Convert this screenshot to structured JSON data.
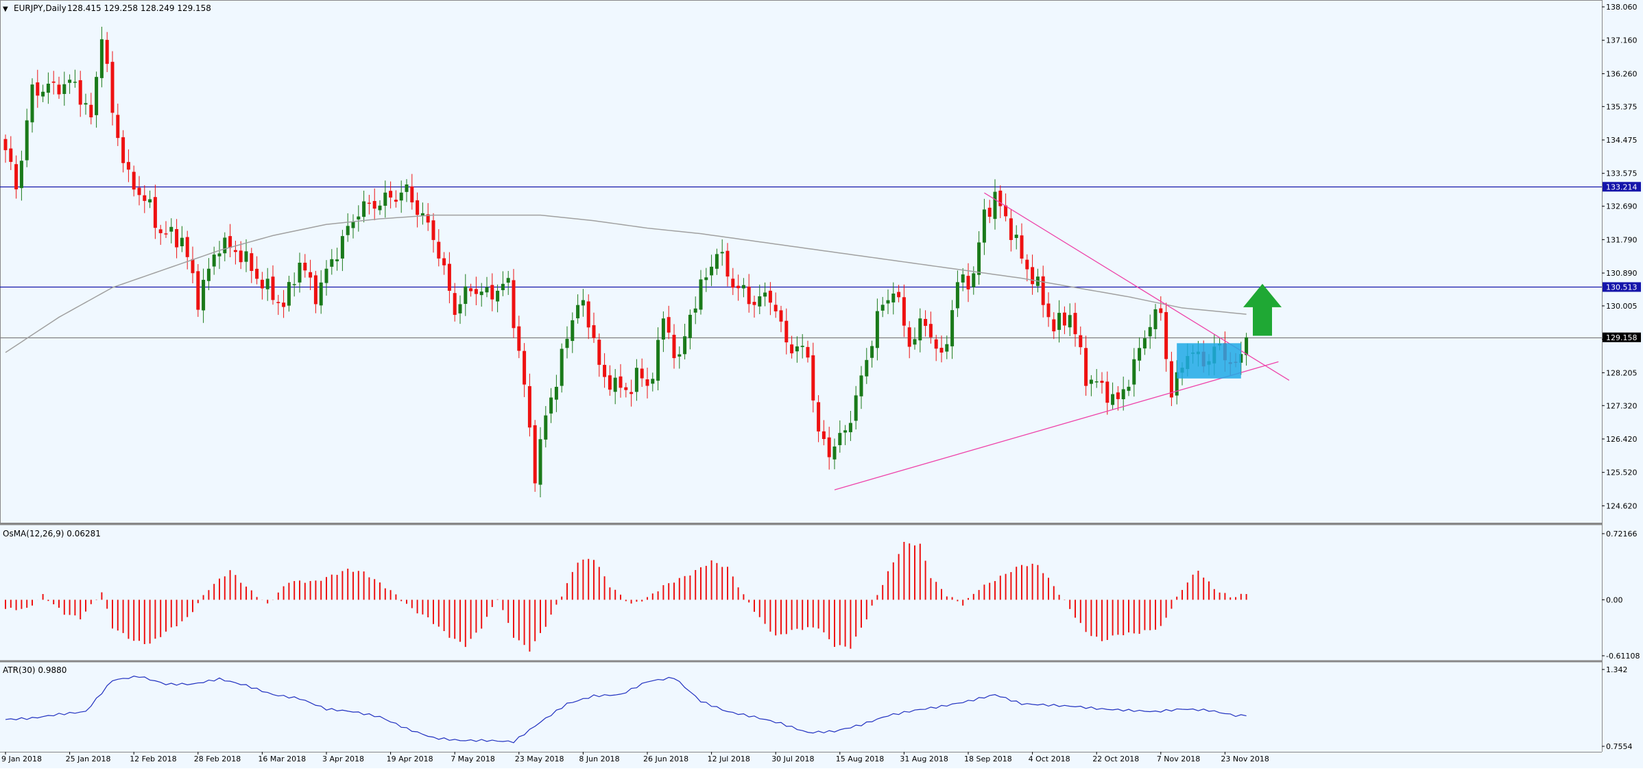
{
  "header": {
    "collapse_glyph": "▼",
    "symbol": "EURJPY,Daily",
    "ohlc": "128.415 129.258 128.249 129.158"
  },
  "colors": {
    "background": "#f0f8ff",
    "bull": "#1a7a1a",
    "bear": "#ee1111",
    "ma": "#a0a0a0",
    "resistance": "#1515aa",
    "current_line": "#808080",
    "trendline": "#ee44aa",
    "zone": "#1ea9e6",
    "arrow": "#1fa834",
    "osma": "#ee1111",
    "atr": "#2030c0",
    "grid": "#888888"
  },
  "chart_data": [
    {
      "type": "candlestick",
      "title": "EURJPY,Daily",
      "ylim": [
        124.35,
        138.06
      ],
      "yticks": [
        "138.060",
        "137.160",
        "136.260",
        "135.375",
        "134.475",
        "133.575",
        "132.690",
        "131.790",
        "130.890",
        "130.005",
        "129.105",
        "128.205",
        "127.320",
        "126.420",
        "125.520",
        "124.620"
      ],
      "price_labels": [
        {
          "value": 133.214,
          "label": "133.214",
          "color": "#1515aa"
        },
        {
          "value": 130.513,
          "label": "130.513",
          "color": "#1515aa"
        },
        {
          "value": 129.158,
          "label": "129.158",
          "color": "#000000"
        }
      ],
      "x_labels": [
        {
          "index": 0,
          "label": "9 Jan 2018"
        },
        {
          "index": 12,
          "label": "25 Jan 2018"
        },
        {
          "index": 24,
          "label": "12 Feb 2018"
        },
        {
          "index": 36,
          "label": "28 Feb 2018"
        },
        {
          "index": 48,
          "label": "16 Mar 2018"
        },
        {
          "index": 60,
          "label": "3 Apr 2018"
        },
        {
          "index": 72,
          "label": "19 Apr 2018"
        },
        {
          "index": 84,
          "label": "7 May 2018"
        },
        {
          "index": 96,
          "label": "23 May 2018"
        },
        {
          "index": 108,
          "label": "8 Jun 2018"
        },
        {
          "index": 120,
          "label": "26 Jun 2018"
        },
        {
          "index": 132,
          "label": "12 Jul 2018"
        },
        {
          "index": 144,
          "label": "30 Jul 2018"
        },
        {
          "index": 156,
          "label": "15 Aug 2018"
        },
        {
          "index": 168,
          "label": "31 Aug 2018"
        },
        {
          "index": 180,
          "label": "18 Sep 2018"
        },
        {
          "index": 192,
          "label": "4 Oct 2018"
        },
        {
          "index": 204,
          "label": "22 Oct 2018"
        },
        {
          "index": 216,
          "label": "7 Nov 2018"
        },
        {
          "index": 228,
          "label": "23 Nov 2018"
        }
      ],
      "anchors": [
        [
          0,
          134.2
        ],
        [
          2,
          133.2
        ],
        [
          5,
          135.8
        ],
        [
          9,
          135.9
        ],
        [
          13,
          136.0
        ],
        [
          16,
          135.0
        ],
        [
          18,
          137.4
        ],
        [
          20,
          135.2
        ],
        [
          23,
          133.4
        ],
        [
          26,
          132.9
        ],
        [
          29,
          132.0
        ],
        [
          33,
          131.8
        ],
        [
          36,
          130.2
        ],
        [
          40,
          131.7
        ],
        [
          44,
          131.4
        ],
        [
          48,
          130.6
        ],
        [
          52,
          130.0
        ],
        [
          55,
          131.2
        ],
        [
          58,
          130.3
        ],
        [
          62,
          131.5
        ],
        [
          66,
          132.6
        ],
        [
          70,
          132.8
        ],
        [
          75,
          133.1
        ],
        [
          80,
          131.9
        ],
        [
          84,
          129.9
        ],
        [
          87,
          130.5
        ],
        [
          90,
          130.3
        ],
        [
          94,
          130.6
        ],
        [
          97,
          127.8
        ],
        [
          99,
          125.5
        ],
        [
          101,
          127.0
        ],
        [
          104,
          128.6
        ],
        [
          107,
          130.2
        ],
        [
          110,
          129.2
        ],
        [
          112,
          127.8
        ],
        [
          114,
          128.1
        ],
        [
          116,
          127.5
        ],
        [
          118,
          128.3
        ],
        [
          120,
          127.7
        ],
        [
          123,
          129.6
        ],
        [
          126,
          128.5
        ],
        [
          128,
          129.8
        ],
        [
          131,
          130.8
        ],
        [
          133,
          131.5
        ],
        [
          136,
          130.6
        ],
        [
          140,
          130.1
        ],
        [
          143,
          130.3
        ],
        [
          146,
          129.0
        ],
        [
          150,
          128.7
        ],
        [
          152,
          126.5
        ],
        [
          154,
          126.1
        ],
        [
          157,
          126.6
        ],
        [
          160,
          128.0
        ],
        [
          163,
          129.7
        ],
        [
          166,
          130.5
        ],
        [
          169,
          129.0
        ],
        [
          172,
          129.6
        ],
        [
          175,
          128.5
        ],
        [
          178,
          130.6
        ],
        [
          181,
          130.8
        ],
        [
          183,
          132.5
        ],
        [
          185,
          132.9
        ],
        [
          187,
          132.4
        ],
        [
          190,
          131.3
        ],
        [
          193,
          130.5
        ],
        [
          196,
          129.4
        ],
        [
          199,
          129.8
        ],
        [
          202,
          128.1
        ],
        [
          205,
          127.8
        ],
        [
          208,
          127.4
        ],
        [
          211,
          128.4
        ],
        [
          214,
          129.6
        ],
        [
          216,
          129.8
        ],
        [
          218,
          127.6
        ],
        [
          221,
          128.8
        ],
        [
          224,
          128.5
        ],
        [
          227,
          128.9
        ],
        [
          230,
          128.3
        ],
        [
          232,
          129.16
        ]
      ],
      "ma_anchors": [
        [
          0,
          128.75
        ],
        [
          10,
          129.7
        ],
        [
          20,
          130.5
        ],
        [
          30,
          131.0
        ],
        [
          40,
          131.5
        ],
        [
          50,
          131.9
        ],
        [
          60,
          132.2
        ],
        [
          70,
          132.35
        ],
        [
          80,
          132.45
        ],
        [
          90,
          132.45
        ],
        [
          100,
          132.45
        ],
        [
          110,
          132.3
        ],
        [
          120,
          132.1
        ],
        [
          130,
          131.95
        ],
        [
          140,
          131.75
        ],
        [
          150,
          131.55
        ],
        [
          160,
          131.35
        ],
        [
          170,
          131.15
        ],
        [
          180,
          130.95
        ],
        [
          190,
          130.75
        ],
        [
          200,
          130.5
        ],
        [
          210,
          130.25
        ],
        [
          220,
          129.95
        ],
        [
          232,
          129.78
        ]
      ],
      "trendlines": [
        {
          "from": [
            183,
            133.05
          ],
          "to": [
            240,
            128.0
          ]
        },
        {
          "from": [
            155,
            125.05
          ],
          "to": [
            238,
            128.5
          ]
        }
      ],
      "zone": {
        "from_index": 219,
        "to_index": 231,
        "top": 129.0,
        "bottom": 128.05
      },
      "arrow": {
        "index": 235,
        "low": 129.2,
        "high": 130.6
      }
    },
    {
      "type": "bar",
      "title": "OsMA(12,26,9) 0.06281",
      "ylim": [
        -0.61108,
        0.72166
      ],
      "yticks": [
        "0.72166",
        "0.00",
        "-0.61108"
      ],
      "anchors": [
        [
          0,
          -0.1
        ],
        [
          4,
          -0.1
        ],
        [
          7,
          0.05
        ],
        [
          11,
          -0.15
        ],
        [
          14,
          -0.2
        ],
        [
          18,
          0.08
        ],
        [
          20,
          -0.3
        ],
        [
          24,
          -0.45
        ],
        [
          27,
          -0.48
        ],
        [
          30,
          -0.35
        ],
        [
          34,
          -0.2
        ],
        [
          38,
          0.12
        ],
        [
          42,
          0.32
        ],
        [
          45,
          0.14
        ],
        [
          49,
          -0.05
        ],
        [
          53,
          0.2
        ],
        [
          58,
          0.2
        ],
        [
          64,
          0.33
        ],
        [
          67,
          0.3
        ],
        [
          72,
          0.1
        ],
        [
          76,
          -0.1
        ],
        [
          79,
          -0.2
        ],
        [
          83,
          -0.4
        ],
        [
          86,
          -0.5
        ],
        [
          89,
          -0.3
        ],
        [
          92,
          0.02
        ],
        [
          95,
          -0.4
        ],
        [
          98,
          -0.55
        ],
        [
          101,
          -0.28
        ],
        [
          104,
          0.05
        ],
        [
          107,
          0.42
        ],
        [
          110,
          0.45
        ],
        [
          113,
          0.15
        ],
        [
          117,
          -0.05
        ],
        [
          120,
          0.02
        ],
        [
          123,
          0.15
        ],
        [
          128,
          0.28
        ],
        [
          132,
          0.42
        ],
        [
          135,
          0.35
        ],
        [
          138,
          0.05
        ],
        [
          141,
          -0.2
        ],
        [
          144,
          -0.4
        ],
        [
          148,
          -0.32
        ],
        [
          152,
          -0.3
        ],
        [
          155,
          -0.5
        ],
        [
          158,
          -0.52
        ],
        [
          161,
          -0.2
        ],
        [
          165,
          0.3
        ],
        [
          168,
          0.62
        ],
        [
          171,
          0.6
        ],
        [
          173,
          0.25
        ],
        [
          176,
          0.05
        ],
        [
          179,
          -0.05
        ],
        [
          182,
          0.12
        ],
        [
          186,
          0.25
        ],
        [
          190,
          0.38
        ],
        [
          193,
          0.38
        ],
        [
          196,
          0.15
        ],
        [
          199,
          -0.1
        ],
        [
          202,
          -0.35
        ],
        [
          205,
          -0.45
        ],
        [
          208,
          -0.38
        ],
        [
          212,
          -0.36
        ],
        [
          216,
          -0.3
        ],
        [
          219,
          0.02
        ],
        [
          221,
          0.2
        ],
        [
          223,
          0.32
        ],
        [
          226,
          0.12
        ],
        [
          229,
          0.03
        ],
        [
          232,
          0.06
        ]
      ]
    },
    {
      "type": "line",
      "title": "ATR(30) 0.9880",
      "ylim": [
        0.7554,
        1.342
      ],
      "yticks": [
        "1.342",
        "0.7554"
      ],
      "anchors": [
        [
          0,
          0.96
        ],
        [
          5,
          0.97
        ],
        [
          10,
          1.0
        ],
        [
          15,
          1.02
        ],
        [
          20,
          1.26
        ],
        [
          25,
          1.29
        ],
        [
          30,
          1.23
        ],
        [
          35,
          1.23
        ],
        [
          40,
          1.27
        ],
        [
          45,
          1.22
        ],
        [
          50,
          1.15
        ],
        [
          55,
          1.12
        ],
        [
          60,
          1.04
        ],
        [
          65,
          1.02
        ],
        [
          70,
          0.98
        ],
        [
          75,
          0.89
        ],
        [
          80,
          0.82
        ],
        [
          85,
          0.8
        ],
        [
          90,
          0.8
        ],
        [
          95,
          0.79
        ],
        [
          100,
          0.94
        ],
        [
          105,
          1.08
        ],
        [
          110,
          1.14
        ],
        [
          115,
          1.15
        ],
        [
          120,
          1.25
        ],
        [
          125,
          1.28
        ],
        [
          130,
          1.1
        ],
        [
          135,
          1.02
        ],
        [
          140,
          0.98
        ],
        [
          145,
          0.93
        ],
        [
          150,
          0.86
        ],
        [
          155,
          0.87
        ],
        [
          160,
          0.92
        ],
        [
          165,
          0.99
        ],
        [
          170,
          1.03
        ],
        [
          175,
          1.06
        ],
        [
          180,
          1.1
        ],
        [
          185,
          1.15
        ],
        [
          190,
          1.08
        ],
        [
          195,
          1.07
        ],
        [
          200,
          1.06
        ],
        [
          205,
          1.04
        ],
        [
          210,
          1.03
        ],
        [
          215,
          1.02
        ],
        [
          220,
          1.04
        ],
        [
          225,
          1.03
        ],
        [
          230,
          0.99
        ],
        [
          232,
          0.988
        ]
      ]
    }
  ]
}
